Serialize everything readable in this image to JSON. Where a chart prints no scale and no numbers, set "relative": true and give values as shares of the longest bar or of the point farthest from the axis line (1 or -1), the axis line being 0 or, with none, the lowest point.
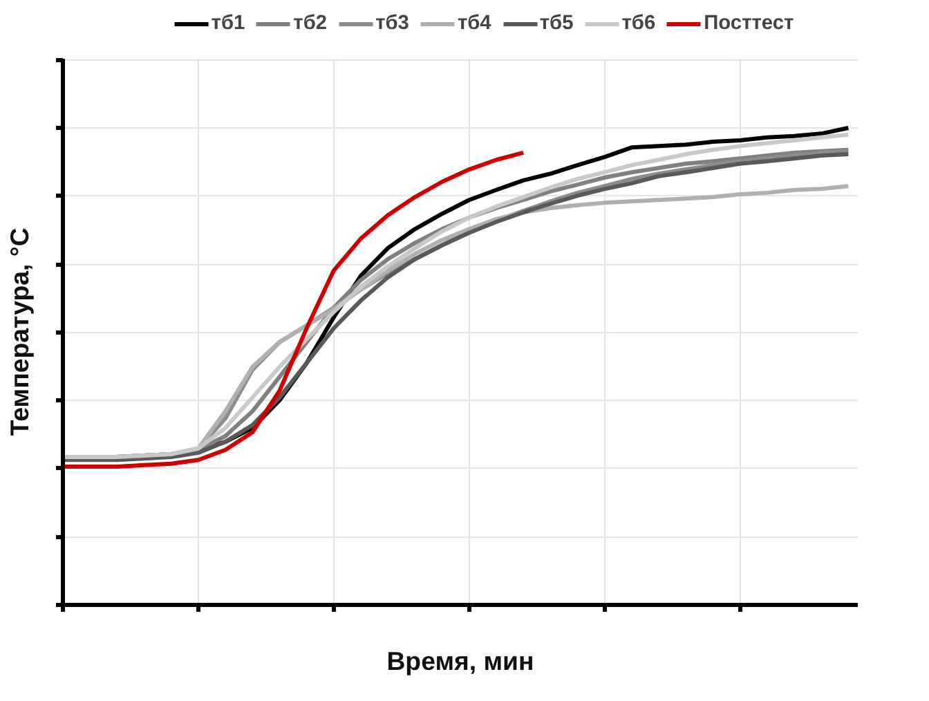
{
  "chart_data": {
    "type": "line",
    "relative": true,
    "xlabel": "Время, мин",
    "ylabel": "Температура, °C",
    "categories": [
      null,
      null,
      null,
      null,
      null,
      null,
      null,
      null,
      null,
      null,
      null,
      null,
      null,
      null,
      null,
      null,
      null,
      null,
      null,
      null,
      null,
      null,
      null,
      null,
      null,
      null,
      null,
      null,
      null,
      null
    ],
    "grid": true,
    "legend": "top",
    "marker": "none",
    "line_style": "solid",
    "series": [
      {
        "name": "тб1",
        "color": "#000000",
        "values": [
          0.31,
          0.31,
          0.31,
          0.313,
          0.316,
          0.325,
          0.342,
          0.371,
          0.429,
          0.507,
          0.603,
          0.69,
          0.748,
          0.788,
          0.82,
          0.849,
          0.87,
          0.89,
          0.904,
          0.922,
          0.939,
          0.959,
          0.962,
          0.965,
          0.971,
          0.974,
          0.98,
          0.983,
          0.988,
          1.0
        ]
      },
      {
        "name": "тб2",
        "color": "#808080",
        "values": [
          0.31,
          0.31,
          0.31,
          0.313,
          0.316,
          0.325,
          0.354,
          0.406,
          0.478,
          0.551,
          0.623,
          0.681,
          0.725,
          0.759,
          0.788,
          0.812,
          0.832,
          0.849,
          0.867,
          0.881,
          0.896,
          0.907,
          0.916,
          0.925,
          0.93,
          0.936,
          0.942,
          0.948,
          0.951,
          0.954
        ]
      },
      {
        "name": "тб3",
        "color": "#8c8c8c",
        "values": [
          0.31,
          0.31,
          0.31,
          0.313,
          0.316,
          0.328,
          0.391,
          0.493,
          0.551,
          0.586,
          0.623,
          0.661,
          0.696,
          0.725,
          0.754,
          0.783,
          0.806,
          0.826,
          0.846,
          0.864,
          0.878,
          0.893,
          0.904,
          0.913,
          0.922,
          0.93,
          0.936,
          0.942,
          0.948,
          0.951
        ]
      },
      {
        "name": "тб4",
        "color": "#b0b0b0",
        "values": [
          0.31,
          0.31,
          0.31,
          0.313,
          0.316,
          0.328,
          0.406,
          0.499,
          0.551,
          0.586,
          0.62,
          0.661,
          0.701,
          0.736,
          0.765,
          0.788,
          0.809,
          0.823,
          0.832,
          0.838,
          0.843,
          0.846,
          0.849,
          0.852,
          0.855,
          0.861,
          0.864,
          0.87,
          0.872,
          0.878
        ]
      },
      {
        "name": "тб5",
        "color": "#595959",
        "values": [
          0.304,
          0.304,
          0.304,
          0.307,
          0.31,
          0.319,
          0.342,
          0.377,
          0.435,
          0.507,
          0.58,
          0.638,
          0.687,
          0.725,
          0.754,
          0.78,
          0.803,
          0.823,
          0.841,
          0.858,
          0.872,
          0.884,
          0.899,
          0.907,
          0.916,
          0.925,
          0.93,
          0.936,
          0.942,
          0.945
        ]
      },
      {
        "name": "тб6",
        "color": "#c8c8c8",
        "values": [
          0.31,
          0.31,
          0.31,
          0.313,
          0.316,
          0.328,
          0.371,
          0.435,
          0.499,
          0.557,
          0.614,
          0.667,
          0.71,
          0.748,
          0.783,
          0.812,
          0.835,
          0.855,
          0.875,
          0.893,
          0.907,
          0.922,
          0.933,
          0.945,
          0.954,
          0.962,
          0.968,
          0.974,
          0.98,
          0.986
        ]
      },
      {
        "name": "Посттест",
        "color": "#d00000",
        "values": [
          0.29,
          0.29,
          0.29,
          0.293,
          0.296,
          0.304,
          0.325,
          0.362,
          0.449,
          0.58,
          0.701,
          0.768,
          0.817,
          0.855,
          0.887,
          0.913,
          0.933,
          0.948,
          null,
          null,
          null,
          null,
          null,
          null,
          null,
          null,
          null,
          null,
          null,
          null
        ]
      }
    ]
  }
}
